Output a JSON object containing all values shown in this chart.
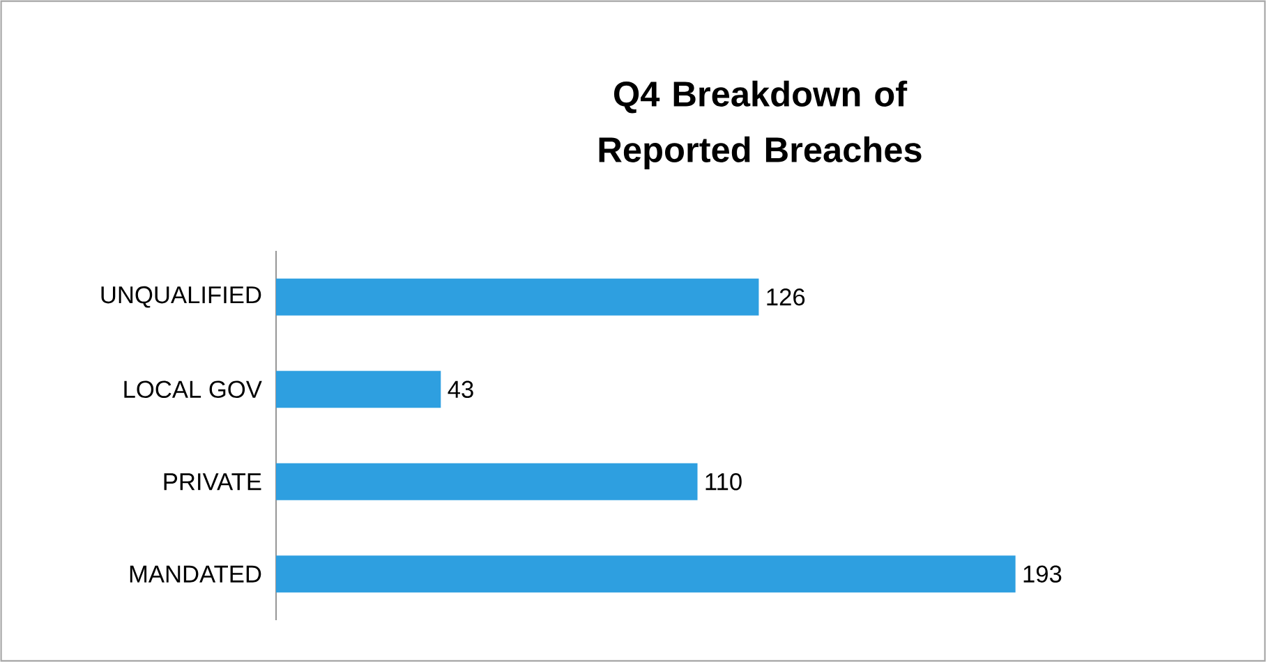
{
  "chart_data": {
    "type": "bar",
    "title": "Q4 Breakdown of Reported Breaches",
    "orientation": "horizontal",
    "categories": [
      "UNQUALIFIED",
      "LOCAL GOV",
      "PRIVATE",
      "MANDATED"
    ],
    "values": [
      126,
      43,
      110,
      193
    ],
    "color": "#2e9fe0",
    "data_labels": true
  }
}
